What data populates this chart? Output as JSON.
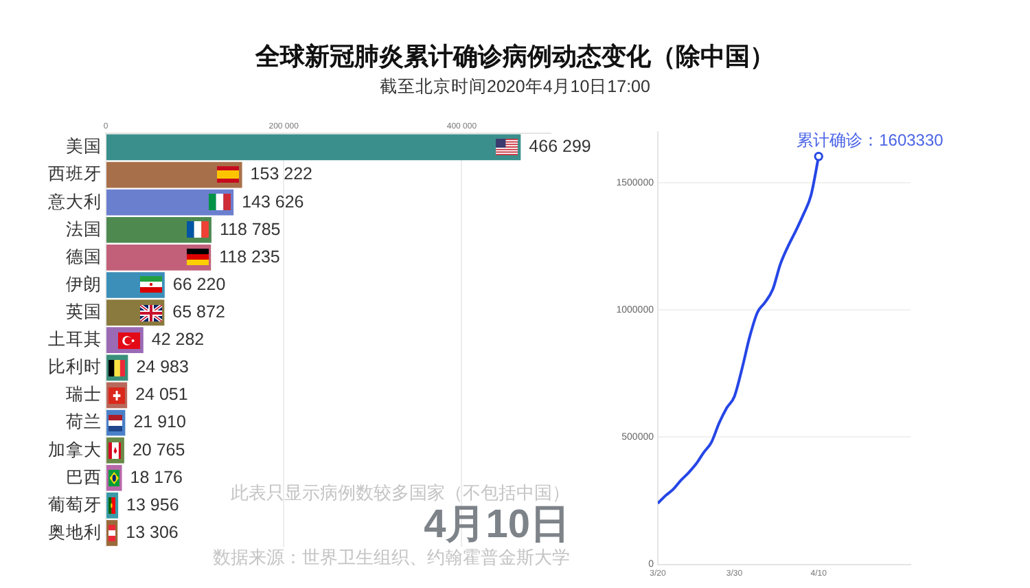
{
  "chart_data": [
    {
      "type": "bar",
      "orientation": "horizontal",
      "title": "全球新冠肺炎累计确诊病例动态变化（除中国）",
      "subtitle": "截至北京时间2020年4月10日17:00",
      "categories": [
        "美国",
        "西班牙",
        "意大利",
        "法国",
        "德国",
        "伊朗",
        "英国",
        "土耳其",
        "比利时",
        "瑞士",
        "荷兰",
        "加拿大",
        "巴西",
        "葡萄牙",
        "奥地利"
      ],
      "values": [
        466299,
        153222,
        143626,
        118785,
        118235,
        66220,
        65872,
        42282,
        24983,
        24051,
        21910,
        20765,
        18176,
        13956,
        13306
      ],
      "colors": [
        "#3a8f8c",
        "#a8704a",
        "#6b7fcf",
        "#4e8a50",
        "#c2607a",
        "#3b8fb8",
        "#8a7a3e",
        "#9b6ab5",
        "#3a8f7a",
        "#b8695c",
        "#4a80c8",
        "#6a8a48",
        "#b867a8",
        "#3a9aa8",
        "#9a6a3a"
      ],
      "value_labels": [
        "466 299",
        "153 222",
        "143 626",
        "118 785",
        "118 235",
        "66 220",
        "65 872",
        "42 282",
        "24 983",
        "24 051",
        "21 910",
        "20 765",
        "18 176",
        "13 956",
        "13 306"
      ],
      "xlim": [
        0,
        500000
      ],
      "xticks": [
        0,
        {
          "value": 200000,
          "label": "200 000"
        },
        {
          "value": 400000,
          "label": "400 000"
        }
      ],
      "grid": "x",
      "annotations": [
        "此表只显示病例数较多国家（不包括中国）",
        "4月10日",
        "数据来源：世界卫生组织、约翰霍普金斯大学"
      ]
    },
    {
      "type": "line",
      "x": [
        "2020-03-20",
        "2020-03-21",
        "2020-03-22",
        "2020-03-23",
        "2020-03-24",
        "2020-03-25",
        "2020-03-26",
        "2020-03-27",
        "2020-03-28",
        "2020-03-29",
        "2020-03-30",
        "2020-03-31",
        "2020-04-01",
        "2020-04-02",
        "2020-04-03",
        "2020-04-04",
        "2020-04-05",
        "2020-04-06",
        "2020-04-07",
        "2020-04-08",
        "2020-04-09",
        "2020-04-10"
      ],
      "series": [
        {
          "color": "#2546e6",
          "values": [
            240000,
            270000,
            295000,
            330000,
            360000,
            395000,
            440000,
            480000,
            555000,
            615000,
            660000,
            770000,
            895000,
            990000,
            1030000,
            1080000,
            1180000,
            1250000,
            1310000,
            1375000,
            1450000,
            1603330
          ]
        }
      ],
      "xlim": [
        "2020-03-20",
        "2020-04-22"
      ],
      "xticks": [
        {
          "value": "2020-03-20",
          "label": "3/20"
        },
        {
          "value": "2020-03-30",
          "label": "3/30"
        },
        {
          "value": "2020-04-10",
          "label": "4/10"
        }
      ],
      "ylim": [
        0,
        1700000
      ],
      "yticks": [
        0,
        500000,
        1000000,
        1500000
      ],
      "grid": "y",
      "marker": "none",
      "annotations": [
        {
          "text": "累计确诊：1603330",
          "x": "2020-04-10",
          "y": 1603330
        }
      ]
    }
  ]
}
